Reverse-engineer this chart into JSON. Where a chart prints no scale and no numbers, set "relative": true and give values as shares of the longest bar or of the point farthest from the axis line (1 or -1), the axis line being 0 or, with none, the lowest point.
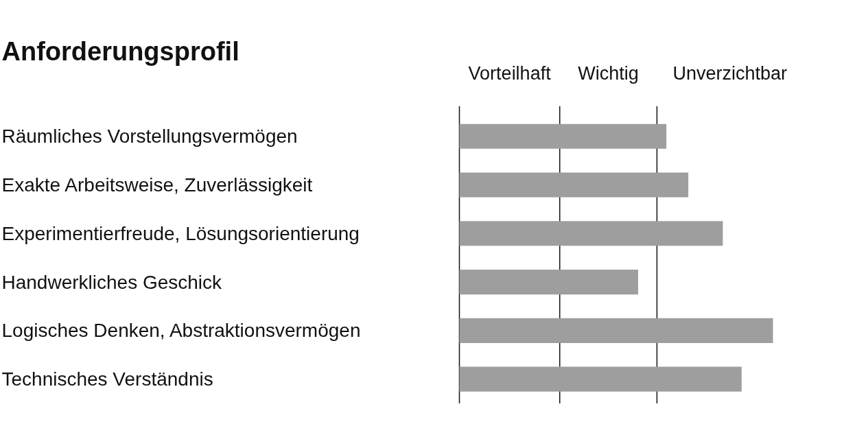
{
  "chart_data": {
    "type": "bar",
    "orientation": "horizontal",
    "relative": true,
    "title": "Anforderungsprofil",
    "categories": [
      "Räumliches Vorstellungsvermögen",
      "Exakte Arbeitsweise, Zuverlässigkeit",
      "Experimentierfreude, Lösungsorientierung",
      "Handwerkliches Geschick",
      "Logisches Denken, Abstraktionsvermögen",
      "Technisches Verständnis"
    ],
    "values": [
      0.66,
      0.73,
      0.84,
      0.57,
      1,
      0.9
    ],
    "color": "#9d9e9d",
    "ref_lines": [
      {
        "axis": "x",
        "value": 0
      },
      {
        "axis": "x",
        "value": 0.32
      },
      {
        "axis": "x",
        "value": 0.63
      }
    ],
    "annotations": [
      "Vorteilhaft",
      "Wichtig",
      "Unverzichtbar"
    ],
    "grid": false
  }
}
